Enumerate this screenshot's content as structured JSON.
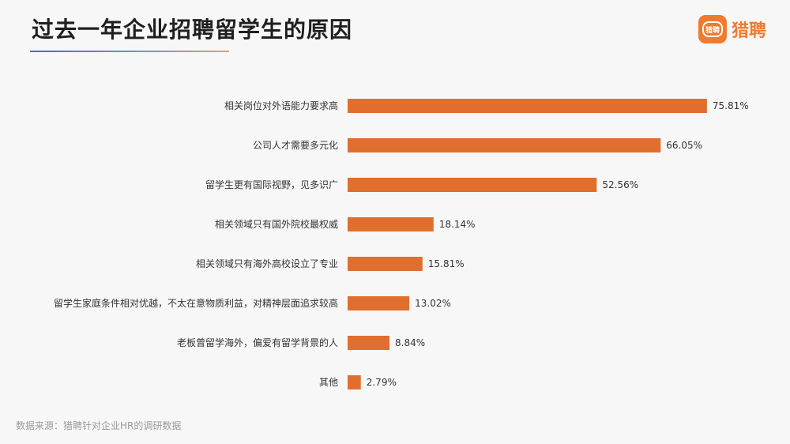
{
  "header": {
    "title": "过去一年企业招聘留学生的原因",
    "logo_text": "猎聘",
    "logo_badge_text": "猎聘"
  },
  "footer": {
    "source": "数据来源：猎聘针对企业HR的调研数据"
  },
  "colors": {
    "bar": "#e06f2f",
    "text": "#333333",
    "title": "#1f1f1f"
  },
  "chart_data": {
    "type": "bar",
    "orientation": "horizontal",
    "categories": [
      "相关岗位对外语能力要求高",
      "公司人才需要多元化",
      "留学生更有国际视野，见多识广",
      "相关领域只有国外院校最权威",
      "相关领域只有海外高校设立了专业",
      "留学生家庭条件相对优越，不太在意物质利益，对精神层面追求较高",
      "老板曾留学海外，偏爱有留学背景的人",
      "其他"
    ],
    "values": [
      75.81,
      66.05,
      52.56,
      18.14,
      15.81,
      13.02,
      8.84,
      2.79
    ],
    "value_labels": [
      "75.81%",
      "66.05%",
      "52.56%",
      "18.14%",
      "15.81%",
      "13.02%",
      "8.84%",
      "2.79%"
    ],
    "unit": "%",
    "grid": false,
    "legend": "none"
  }
}
